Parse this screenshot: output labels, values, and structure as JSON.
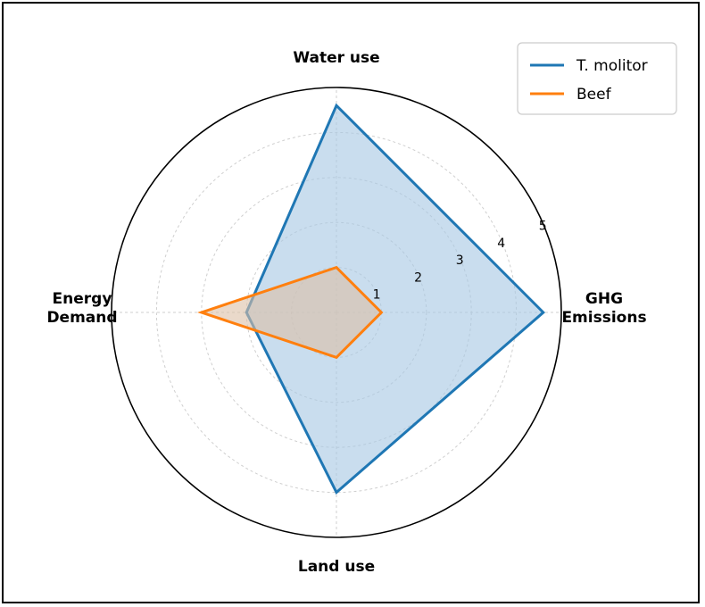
{
  "colors": {
    "series_1": "#1f77b4",
    "series_2": "#ff7f0e",
    "fill_1": "#a8c8e4",
    "fill_2": "#dcbfa6",
    "grid": "#cfcfcf",
    "outer": "#000000"
  },
  "chart_data": {
    "type": "radar",
    "categories": [
      {
        "lines": [
          "GHG",
          "Emissions"
        ]
      },
      {
        "lines": [
          "Water use"
        ]
      },
      {
        "lines": [
          "Energy",
          "Demand"
        ]
      },
      {
        "lines": [
          "Land use"
        ]
      }
    ],
    "series": [
      {
        "name": "T. molitor",
        "values": [
          4.6,
          4.6,
          2.0,
          4.0
        ]
      },
      {
        "name": "Beef",
        "values": [
          1.0,
          1.0,
          3.0,
          1.0
        ]
      }
    ],
    "rlim": [
      0,
      5
    ],
    "rticks": [
      "1",
      "2",
      "3",
      "4",
      "5"
    ],
    "grid": true,
    "legend_position": "top-right"
  }
}
